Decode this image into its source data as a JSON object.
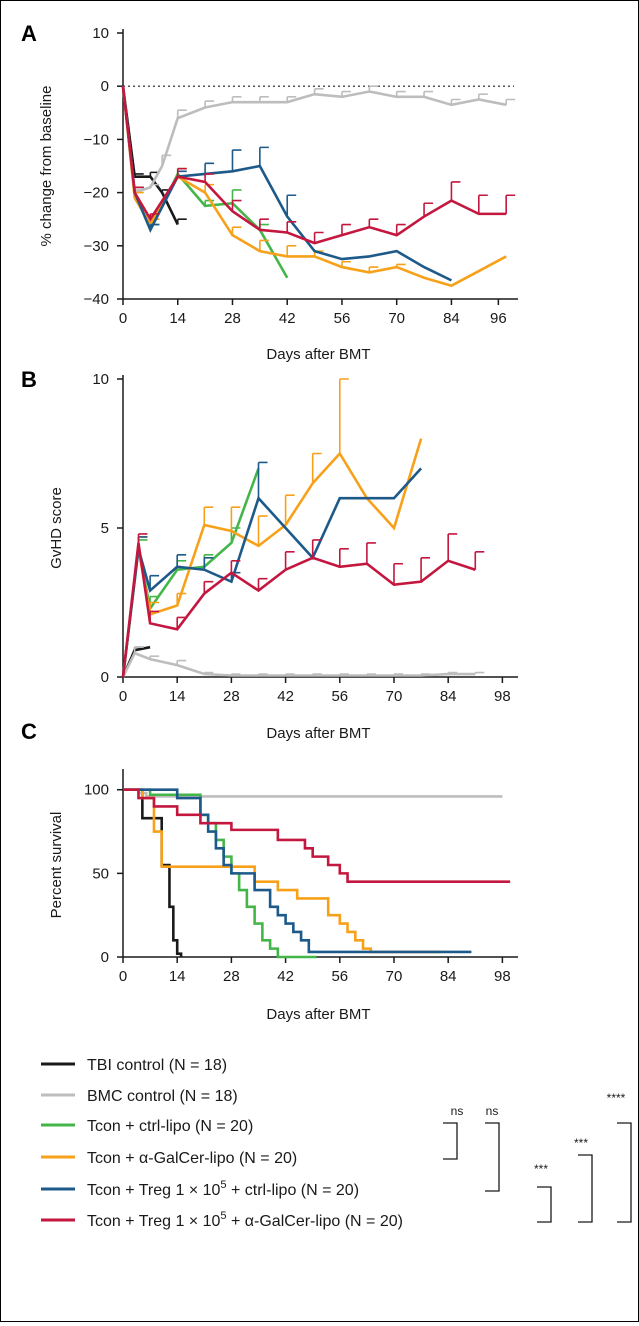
{
  "colors": {
    "TBI control": "#1a1a1a",
    "BMC control": "#bdbdbd",
    "Tcon + ctrl-lipo": "#44b649",
    "Tcon + α-GalCer-lipo": "#f7a11a",
    "Tcon + Treg 1 × 10^5 + ctrl-lipo": "#1d5a8a",
    "Tcon + Treg 1 × 10^5 + α-GalCer-lipo": "#c4173f"
  },
  "chart_data": [
    {
      "panel": "A",
      "type": "line",
      "xlabel": "Days after BMT",
      "ylabel": "% change from baseline",
      "xlim": [
        0,
        100
      ],
      "ylim": [
        -40,
        10
      ],
      "xticks": [
        0,
        14,
        28,
        42,
        56,
        70,
        84,
        96
      ],
      "yticks": [
        10,
        0,
        -10,
        -20,
        -30,
        -40
      ],
      "baseline": 0,
      "series": [
        {
          "name": "TBI control",
          "x": [
            0,
            3,
            7,
            10,
            14
          ],
          "y": [
            0,
            -17,
            -17,
            -20,
            -26
          ],
          "err": [
            0,
            0.5,
            0.8,
            0.5,
            1
          ]
        },
        {
          "name": "BMC control",
          "x": [
            0,
            3,
            7,
            10,
            14,
            21,
            28,
            35,
            42,
            49,
            56,
            63,
            70,
            77,
            84,
            91,
            98
          ],
          "y": [
            0,
            -20,
            -19,
            -15,
            -6,
            -4,
            -3,
            -3,
            -3,
            -1.5,
            -2,
            -1,
            -2,
            -2,
            -3.5,
            -2.5,
            -3.5
          ],
          "err": [
            0,
            0.5,
            0.5,
            2,
            1.5,
            1.2,
            1,
            1,
            1,
            1,
            1,
            1,
            1,
            1,
            1,
            1,
            1
          ]
        },
        {
          "name": "Tcon + ctrl-lipo",
          "x": [
            0,
            3,
            7,
            14,
            21,
            28,
            35,
            42
          ],
          "y": [
            0,
            -20,
            -27,
            -16.5,
            -22.5,
            -22,
            -27,
            -36
          ],
          "err": [
            0,
            1,
            1,
            1,
            1,
            2.5,
            1,
            0
          ]
        },
        {
          "name": "Tcon + α-GalCer-lipo",
          "x": [
            0,
            3,
            7,
            14,
            21,
            28,
            35,
            42,
            49,
            56,
            63,
            70,
            77,
            84,
            98
          ],
          "y": [
            0,
            -21,
            -26,
            -17,
            -20,
            -28,
            -31,
            -32,
            -32,
            -34,
            -35,
            -34,
            -36,
            -37.5,
            -32
          ],
          "err": [
            0,
            1,
            1,
            1.5,
            1.5,
            1.5,
            2,
            2,
            1,
            1,
            1,
            0.5,
            0,
            0,
            0
          ]
        },
        {
          "name": "Tcon + Treg 1 × 10^5 + ctrl-lipo",
          "x": [
            0,
            3,
            7,
            14,
            21,
            28,
            35,
            42,
            49,
            56,
            63,
            70,
            77,
            84
          ],
          "y": [
            0,
            -20,
            -27,
            -17,
            -16.5,
            -16,
            -15,
            -24.5,
            -31,
            -32.5,
            -32,
            -31,
            -34,
            -36.5
          ],
          "err": [
            0,
            1,
            1,
            1,
            2,
            4,
            3.5,
            4,
            0,
            0,
            0,
            0,
            0,
            0
          ]
        },
        {
          "name": "Tcon + Treg 1 × 10^5 + α-GalCer-lipo",
          "x": [
            0,
            3,
            7,
            14,
            21,
            28,
            35,
            42,
            49,
            56,
            63,
            70,
            77,
            84,
            91,
            98
          ],
          "y": [
            0,
            -20,
            -25,
            -17,
            -18,
            -23.5,
            -27,
            -27.5,
            -29.5,
            -28,
            -26.5,
            -28,
            -24.5,
            -21.5,
            -24,
            -24
          ],
          "err": [
            0,
            1,
            1,
            1.5,
            1.5,
            2,
            2,
            2,
            2,
            2,
            1.5,
            2,
            2.5,
            3.5,
            3.5,
            3.5
          ]
        }
      ]
    },
    {
      "panel": "B",
      "type": "line",
      "xlabel": "Days after BMT",
      "ylabel": "GvHD score",
      "xlim": [
        0,
        101
      ],
      "ylim": [
        0,
        10
      ],
      "xticks": [
        0,
        14,
        28,
        42,
        56,
        70,
        84,
        98
      ],
      "yticks": [
        10,
        5,
        0
      ],
      "series": [
        {
          "name": "TBI control",
          "x": [
            0,
            3,
            7
          ],
          "y": [
            0,
            0.9,
            1
          ],
          "err": [
            0,
            0.1,
            0
          ]
        },
        {
          "name": "BMC control",
          "x": [
            0,
            3,
            7,
            14,
            21,
            28,
            35,
            42,
            49,
            56,
            63,
            70,
            77,
            84,
            91
          ],
          "y": [
            0,
            0.8,
            0.6,
            0.4,
            0.1,
            0.05,
            0.05,
            0.05,
            0.05,
            0.05,
            0.05,
            0.05,
            0.05,
            0.1,
            0.1
          ],
          "err": [
            0,
            0.2,
            0.1,
            0.15,
            0.05,
            0.05,
            0.05,
            0.05,
            0.05,
            0.05,
            0.05,
            0.05,
            0.05,
            0.05,
            0.05
          ]
        },
        {
          "name": "Tcon + ctrl-lipo",
          "x": [
            0,
            4,
            7,
            14,
            21,
            28,
            35
          ],
          "y": [
            0,
            4.3,
            2.3,
            3.6,
            3.7,
            4.5,
            7
          ],
          "err": [
            0,
            0.3,
            0.4,
            0.3,
            0.4,
            0.5,
            0
          ]
        },
        {
          "name": "Tcon + α-GalCer-lipo",
          "x": [
            0,
            4,
            7,
            14,
            21,
            28,
            35,
            42,
            49,
            56,
            63,
            70,
            77
          ],
          "y": [
            0,
            4.3,
            2.1,
            2.4,
            5.1,
            4.9,
            4.4,
            5.1,
            6.5,
            7.5,
            6,
            5,
            8
          ],
          "err": [
            0,
            0.4,
            0.4,
            0.4,
            0.6,
            0.8,
            1,
            1,
            1,
            2.5,
            0,
            0,
            0
          ]
        },
        {
          "name": "Tcon + Treg 1 × 10^5 + ctrl-lipo",
          "x": [
            0,
            4,
            7,
            14,
            21,
            28,
            35,
            42,
            49,
            56,
            63,
            70,
            77
          ],
          "y": [
            0,
            4.3,
            2.9,
            3.7,
            3.6,
            3.2,
            6,
            5,
            4,
            6,
            6,
            6,
            7
          ],
          "err": [
            0,
            0.4,
            0.5,
            0.4,
            0.4,
            0.3,
            1.2,
            0,
            0,
            0,
            0,
            0,
            0
          ]
        },
        {
          "name": "Tcon + Treg 1 × 10^5 + α-GalCer-lipo",
          "x": [
            0,
            4,
            7,
            14,
            21,
            28,
            35,
            42,
            49,
            56,
            63,
            70,
            77,
            84,
            91
          ],
          "y": [
            0,
            4.5,
            1.8,
            1.6,
            2.8,
            3.5,
            2.9,
            3.6,
            4,
            3.7,
            3.8,
            3.1,
            3.2,
            3.9,
            3.6
          ],
          "err": [
            0,
            0.3,
            0.4,
            0.4,
            0.4,
            0.4,
            0.4,
            0.6,
            0.6,
            0.6,
            0.7,
            0.7,
            0.8,
            0.9,
            0.6
          ]
        }
      ]
    },
    {
      "panel": "C",
      "type": "line",
      "subtype": "survival-step",
      "xlabel": "Days after BMT",
      "ylabel": "Percent survival",
      "xlim": [
        0,
        101
      ],
      "ylim": [
        0,
        110
      ],
      "xticks": [
        0,
        14,
        28,
        42,
        56,
        70,
        84,
        98
      ],
      "yticks": [
        100,
        50,
        0
      ],
      "series": [
        {
          "name": "TBI control",
          "x": [
            0,
            5,
            10,
            12,
            13,
            14,
            15
          ],
          "y": [
            100,
            83,
            55,
            30,
            10,
            2,
            0
          ]
        },
        {
          "name": "BMC control",
          "x": [
            0,
            4,
            6,
            98
          ],
          "y": [
            100,
            98,
            96,
            96
          ]
        },
        {
          "name": "Tcon + ctrl-lipo",
          "x": [
            0,
            7,
            14,
            20,
            22,
            24,
            26,
            28,
            30,
            32,
            34,
            36,
            38,
            40,
            50
          ],
          "y": [
            100,
            97,
            97,
            85,
            80,
            70,
            60,
            50,
            40,
            30,
            20,
            10,
            5,
            0,
            0
          ]
        },
        {
          "name": "Tcon + α-GalCer-lipo",
          "x": [
            0,
            5,
            8,
            10,
            30,
            34,
            40,
            45,
            53,
            56,
            58,
            60,
            62,
            64,
            82
          ],
          "y": [
            100,
            95,
            75,
            54,
            54,
            45,
            40,
            35,
            25,
            20,
            15,
            10,
            5,
            3,
            3
          ]
        },
        {
          "name": "Tcon + Treg 1 × 10^5 + ctrl-lipo",
          "x": [
            0,
            14,
            20,
            22,
            24,
            26,
            28,
            34,
            38,
            40,
            42,
            44,
            46,
            48,
            90
          ],
          "y": [
            100,
            95,
            85,
            75,
            65,
            55,
            50,
            40,
            30,
            25,
            20,
            15,
            10,
            3,
            3
          ]
        },
        {
          "name": "Tcon + Treg 1 × 10^5 + α-GalCer-lipo",
          "x": [
            0,
            4,
            8,
            14,
            20,
            28,
            40,
            47,
            49,
            53,
            56,
            58,
            60,
            63,
            100
          ],
          "y": [
            100,
            95,
            90,
            85,
            80,
            76,
            70,
            65,
            60,
            55,
            50,
            45,
            45,
            45,
            45
          ]
        }
      ]
    }
  ],
  "panels": {
    "A": {
      "letter": "A",
      "xlabel": "Days after BMT",
      "ylabel": "% change from baseline"
    },
    "B": {
      "letter": "B",
      "xlabel": "Days after BMT",
      "ylabel": "GvHD score"
    },
    "C": {
      "letter": "C",
      "xlabel": "Days after BMT",
      "ylabel": "Percent survival"
    }
  },
  "legend": [
    {
      "label": "TBI control (N = 18)",
      "series": "TBI control"
    },
    {
      "label": "BMC control (N = 18)",
      "series": "BMC control"
    },
    {
      "label": "Tcon + ctrl-lipo (N = 20)",
      "series": "Tcon + ctrl-lipo"
    },
    {
      "label": "Tcon + α-GalCer-lipo (N = 20)",
      "series": "Tcon + α-GalCer-lipo"
    },
    {
      "label_pre": "Tcon + Treg 1 × 10",
      "label_sup": "5",
      "label_post": " + ctrl-lipo (N = 20)",
      "series": "Tcon + Treg 1 × 10^5 + ctrl-lipo"
    },
    {
      "label_pre": "Tcon + Treg 1 × 10",
      "label_sup": "5",
      "label_post": " + α-GalCer-lipo (N = 20)",
      "series": "Tcon + Treg 1 × 10^5 + α-GalCer-lipo"
    }
  ],
  "significance": [
    {
      "label": "ns",
      "from_row": 2,
      "to_row": 3
    },
    {
      "label": "ns",
      "from_row": 2,
      "to_row": 4
    },
    {
      "label": "***",
      "from_row": 4,
      "to_row": 5
    },
    {
      "label": "***",
      "from_row": 3,
      "to_row": 5
    },
    {
      "label": "****",
      "from_row": 2,
      "to_row": 5
    }
  ]
}
